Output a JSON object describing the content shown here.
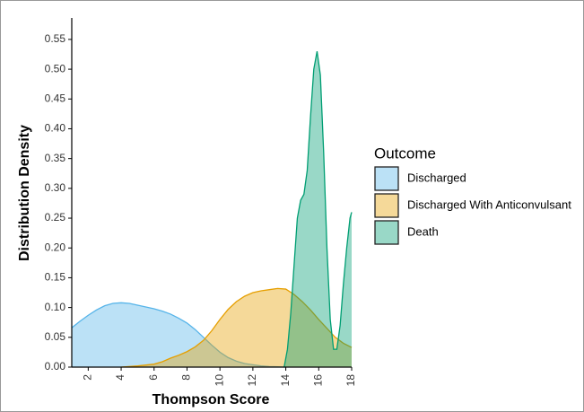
{
  "chart_data": {
    "type": "density",
    "x_label": "Thompson Score",
    "y_label": "Distribution Density",
    "legend_title": "Outcome",
    "legend_position": "right",
    "xlim": [
      1,
      18
    ],
    "ylim": [
      0,
      0.586
    ],
    "xticks": [
      2,
      4,
      6,
      8,
      10,
      12,
      14,
      16,
      18
    ],
    "yticks": [
      {
        "value": 0,
        "label": "0.00"
      },
      {
        "value": 0.05,
        "label": "0.05"
      },
      {
        "value": 0.1,
        "label": "0.10"
      },
      {
        "value": 0.15,
        "label": "0.15"
      },
      {
        "value": 0.2,
        "label": "0.20"
      },
      {
        "value": 0.25,
        "label": "0.25"
      },
      {
        "value": 0.3,
        "label": "0.30"
      },
      {
        "value": 0.35,
        "label": "0.35"
      },
      {
        "value": 0.4,
        "label": "0.40"
      },
      {
        "value": 0.45,
        "label": "0.45"
      },
      {
        "value": 0.5,
        "label": "0.50"
      },
      {
        "value": 0.55,
        "label": "0.55"
      }
    ],
    "series": [
      {
        "name": "Discharged",
        "color": "#56b4e9",
        "x": [
          1,
          1.5,
          2,
          2.5,
          3,
          3.5,
          4,
          4.5,
          5,
          5.5,
          6,
          6.5,
          7,
          7.5,
          8,
          8.5,
          9,
          9.5,
          10,
          10.5,
          11,
          11.5,
          12,
          12.5,
          13,
          13.5,
          14
        ],
        "values": [
          0.066,
          0.077,
          0.087,
          0.096,
          0.103,
          0.107,
          0.108,
          0.107,
          0.104,
          0.101,
          0.098,
          0.094,
          0.089,
          0.082,
          0.074,
          0.063,
          0.05,
          0.037,
          0.025,
          0.016,
          0.01,
          0.006,
          0.004,
          0.002,
          0.001,
          0.0005,
          0
        ]
      },
      {
        "name": "Discharged With Anticonvulsant",
        "color": "#e69f00",
        "x": [
          4,
          5,
          6,
          6.5,
          7,
          7.5,
          8,
          8.5,
          9,
          9.5,
          10,
          10.5,
          11,
          11.5,
          12,
          12.5,
          13,
          13.5,
          14,
          14.5,
          15,
          15.5,
          16,
          16.5,
          17,
          17.5,
          18
        ],
        "values": [
          0,
          0.002,
          0.005,
          0.009,
          0.015,
          0.02,
          0.026,
          0.034,
          0.045,
          0.061,
          0.08,
          0.097,
          0.11,
          0.119,
          0.125,
          0.128,
          0.13,
          0.132,
          0.131,
          0.122,
          0.11,
          0.096,
          0.08,
          0.065,
          0.05,
          0.04,
          0.033
        ]
      },
      {
        "name": "Death",
        "color": "#009e73",
        "x": [
          13.9,
          14.1,
          14.3,
          14.5,
          14.7,
          14.9,
          15.1,
          15.3,
          15.5,
          15.7,
          15.9,
          16.1,
          16.3,
          16.5,
          16.7,
          16.9,
          17.1,
          17.3,
          17.5,
          17.7,
          17.9,
          18
        ],
        "values": [
          0,
          0.03,
          0.09,
          0.17,
          0.25,
          0.28,
          0.29,
          0.33,
          0.42,
          0.5,
          0.53,
          0.49,
          0.36,
          0.2,
          0.08,
          0.03,
          0.03,
          0.07,
          0.14,
          0.2,
          0.25,
          0.26
        ]
      }
    ]
  }
}
